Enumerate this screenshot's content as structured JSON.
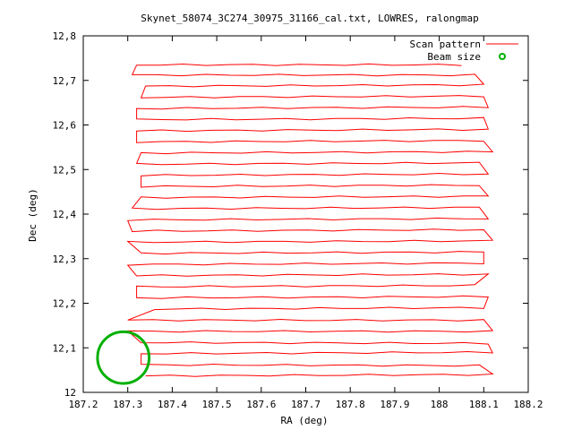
{
  "chart_data": {
    "type": "line",
    "title": "Skynet_58074_3C274_30975_31166_cal.txt, LOWRES, ralongmap",
    "xlabel": "RA (deg)",
    "ylabel": "Dec (deg)",
    "xlim": [
      187.2,
      188.2
    ],
    "ylim": [
      12.0,
      12.8
    ],
    "x_ticks": [
      187.2,
      187.3,
      187.4,
      187.5,
      187.6,
      187.7,
      187.8,
      187.9,
      188.0,
      188.1,
      188.2
    ],
    "x_tick_labels": [
      "187.2",
      "187.3",
      "187.4",
      "187.5",
      "187.6",
      "187.7",
      "187.8",
      "187.9",
      "188",
      "188.1",
      "188.2"
    ],
    "y_ticks": [
      12.0,
      12.1,
      12.2,
      12.3,
      12.4,
      12.5,
      12.6,
      12.7,
      12.8
    ],
    "y_tick_labels": [
      "12",
      "12,1",
      "12,2",
      "12,3",
      "12,4",
      "12,5",
      "12,6",
      "12,7",
      "12,8"
    ],
    "grid": false,
    "legend_placement": "top-right",
    "series": [
      {
        "name": "Scan pattern",
        "color": "#ff0000",
        "style": "line",
        "scan_rows": [
          {
            "dec_left": 12.037,
            "dec_right": 12.04,
            "ra_left": 187.34,
            "ra_right": 188.12
          },
          {
            "dec_left": 12.062,
            "dec_right": 12.06,
            "ra_left": 187.33,
            "ra_right": 188.09
          },
          {
            "dec_left": 12.087,
            "dec_right": 12.09,
            "ra_left": 187.33,
            "ra_right": 188.12
          },
          {
            "dec_left": 12.112,
            "dec_right": 12.11,
            "ra_left": 187.33,
            "ra_right": 188.11
          },
          {
            "dec_left": 12.137,
            "dec_right": 12.137,
            "ra_left": 187.3,
            "ra_right": 188.12
          },
          {
            "dec_left": 12.162,
            "dec_right": 12.162,
            "ra_left": 187.3,
            "ra_right": 188.1
          },
          {
            "dec_left": 12.187,
            "dec_right": 12.19,
            "ra_left": 187.36,
            "ra_right": 188.1
          },
          {
            "dec_left": 12.212,
            "dec_right": 12.215,
            "ra_left": 187.32,
            "ra_right": 188.11
          },
          {
            "dec_left": 12.237,
            "dec_right": 12.24,
            "ra_left": 187.32,
            "ra_right": 188.08
          },
          {
            "dec_left": 12.262,
            "dec_right": 12.265,
            "ra_left": 187.32,
            "ra_right": 188.11
          },
          {
            "dec_left": 12.287,
            "dec_right": 12.29,
            "ra_left": 187.3,
            "ra_right": 188.1
          },
          {
            "dec_left": 12.312,
            "dec_right": 12.315,
            "ra_left": 187.33,
            "ra_right": 188.1
          },
          {
            "dec_left": 12.337,
            "dec_right": 12.34,
            "ra_left": 187.3,
            "ra_right": 188.12
          },
          {
            "dec_left": 12.362,
            "dec_right": 12.365,
            "ra_left": 187.31,
            "ra_right": 188.1
          },
          {
            "dec_left": 12.387,
            "dec_right": 12.39,
            "ra_left": 187.3,
            "ra_right": 188.11
          },
          {
            "dec_left": 12.412,
            "dec_right": 12.415,
            "ra_left": 187.31,
            "ra_right": 188.09
          },
          {
            "dec_left": 12.437,
            "dec_right": 12.44,
            "ra_left": 187.33,
            "ra_right": 188.11
          },
          {
            "dec_left": 12.462,
            "dec_right": 12.465,
            "ra_left": 187.33,
            "ra_right": 188.09
          },
          {
            "dec_left": 12.487,
            "dec_right": 12.49,
            "ra_left": 187.33,
            "ra_right": 188.11
          },
          {
            "dec_left": 12.512,
            "dec_right": 12.515,
            "ra_left": 187.32,
            "ra_right": 188.09
          },
          {
            "dec_left": 12.537,
            "dec_right": 12.54,
            "ra_left": 187.33,
            "ra_right": 188.12
          },
          {
            "dec_left": 12.562,
            "dec_right": 12.565,
            "ra_left": 187.32,
            "ra_right": 188.1
          },
          {
            "dec_left": 12.587,
            "dec_right": 12.59,
            "ra_left": 187.32,
            "ra_right": 188.11
          },
          {
            "dec_left": 12.612,
            "dec_right": 12.615,
            "ra_left": 187.32,
            "ra_right": 188.1
          },
          {
            "dec_left": 12.637,
            "dec_right": 12.64,
            "ra_left": 187.32,
            "ra_right": 188.11
          },
          {
            "dec_left": 12.662,
            "dec_right": 12.665,
            "ra_left": 187.33,
            "ra_right": 188.1
          },
          {
            "dec_left": 12.687,
            "dec_right": 12.69,
            "ra_left": 187.34,
            "ra_right": 188.1
          },
          {
            "dec_left": 12.712,
            "dec_right": 12.712,
            "ra_left": 187.31,
            "ra_right": 188.08
          },
          {
            "dec_left": 12.735,
            "dec_right": 12.735,
            "ra_left": 187.32,
            "ra_right": 188.05
          }
        ]
      },
      {
        "name": "Beam size",
        "color": "#00b000",
        "style": "circle",
        "center_ra": 187.29,
        "center_dec": 12.078,
        "radius_deg": 0.058
      }
    ]
  }
}
